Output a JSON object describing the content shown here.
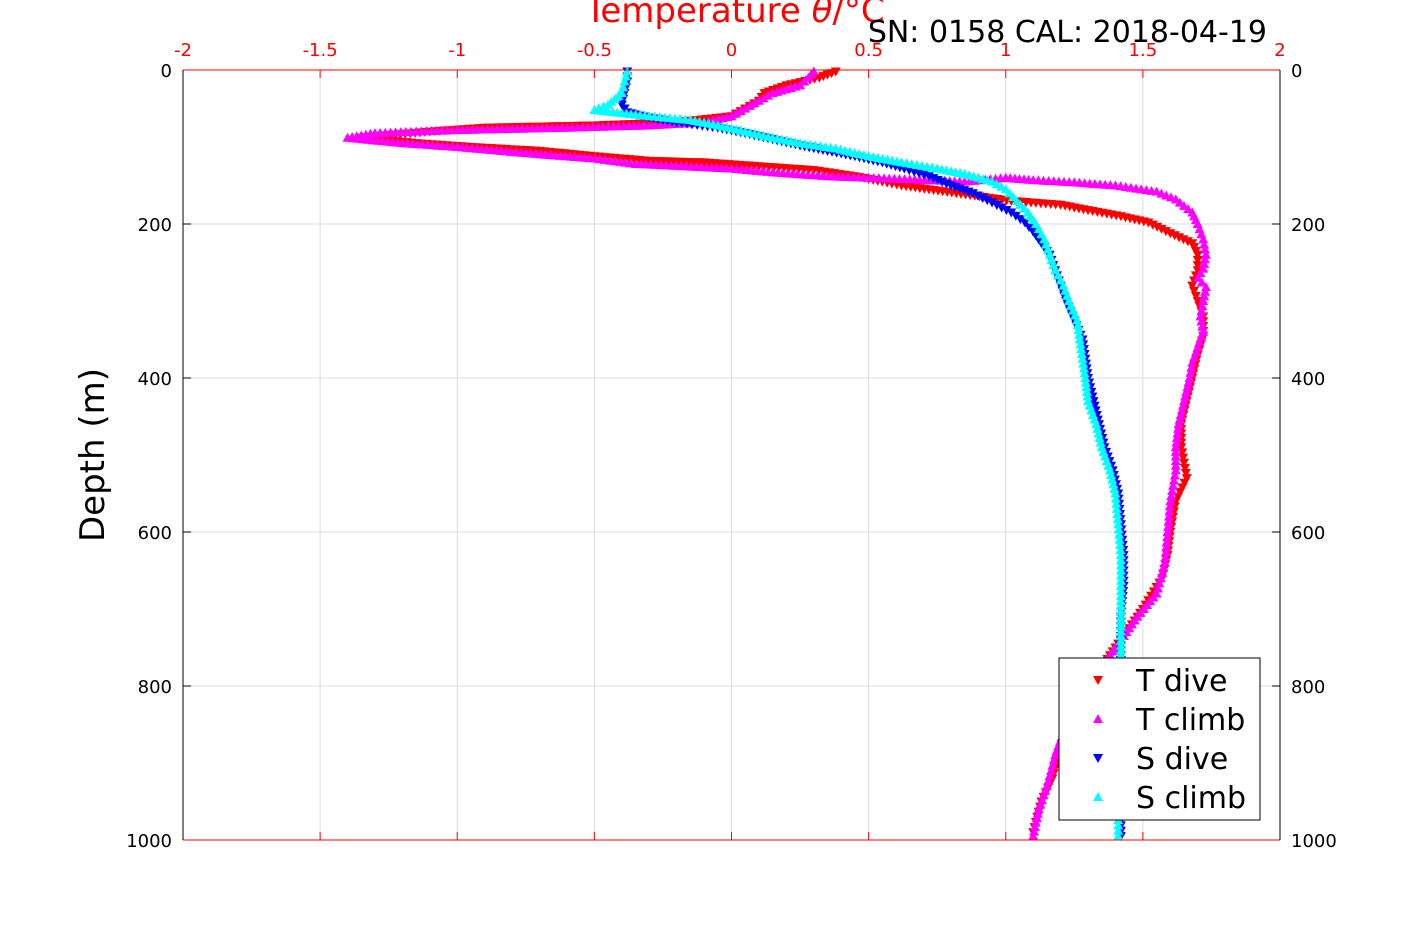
{
  "header": {
    "xtitle_prefix": "Temperature ",
    "xtitle_var": "θ",
    "xtitle_suffix": "/°C",
    "serial_cal": "SN: 0158  CAL: 2018-04-19"
  },
  "chart_data": {
    "type": "scatter",
    "title": "",
    "xlabel": "Temperature θ/°C",
    "ylabel": "Depth (m)",
    "xlim": [
      -2,
      2
    ],
    "ylim": [
      1000,
      0
    ],
    "y_reversed": true,
    "grid": true,
    "legend_position": "bottom-right",
    "x_ticks": [
      "-2",
      "-1.5",
      "-1",
      "-0.5",
      "0",
      "0.5",
      "1",
      "1.5",
      "2"
    ],
    "y_ticks": [
      "0",
      "200",
      "400",
      "600",
      "800",
      "1000"
    ],
    "colors": {
      "axis_top": "#ff0000",
      "t_dive": "#ff0000",
      "t_climb": "#ff00ff",
      "s_dive": "#0000ff",
      "s_climb": "#00ffff"
    },
    "series": [
      {
        "name": "T dive",
        "marker": "triangle-down",
        "color": "#ff0000",
        "points": [
          [
            0.38,
            2
          ],
          [
            0.32,
            10
          ],
          [
            0.2,
            20
          ],
          [
            0.12,
            30
          ],
          [
            0.1,
            40
          ],
          [
            0.05,
            50
          ],
          [
            0.0,
            60
          ],
          [
            -0.2,
            68
          ],
          [
            -0.5,
            72
          ],
          [
            -0.9,
            75
          ],
          [
            -1.1,
            80
          ],
          [
            -1.35,
            88
          ],
          [
            -1.15,
            95
          ],
          [
            -0.95,
            100
          ],
          [
            -0.7,
            105
          ],
          [
            -0.5,
            112
          ],
          [
            -0.3,
            118
          ],
          [
            -0.1,
            120
          ],
          [
            0.1,
            125
          ],
          [
            0.3,
            130
          ],
          [
            0.45,
            138
          ],
          [
            0.55,
            145
          ],
          [
            0.62,
            150
          ],
          [
            0.72,
            155
          ],
          [
            0.82,
            160
          ],
          [
            0.92,
            165
          ],
          [
            1.02,
            170
          ],
          [
            1.2,
            175
          ],
          [
            1.3,
            182
          ],
          [
            1.42,
            190
          ],
          [
            1.52,
            198
          ],
          [
            1.6,
            212
          ],
          [
            1.68,
            225
          ],
          [
            1.7,
            240
          ],
          [
            1.7,
            260
          ],
          [
            1.68,
            280
          ],
          [
            1.7,
            300
          ],
          [
            1.72,
            320
          ],
          [
            1.72,
            345
          ],
          [
            1.7,
            370
          ],
          [
            1.68,
            400
          ],
          [
            1.66,
            430
          ],
          [
            1.64,
            460
          ],
          [
            1.64,
            490
          ],
          [
            1.66,
            530
          ],
          [
            1.62,
            560
          ],
          [
            1.6,
            600
          ],
          [
            1.59,
            630
          ],
          [
            1.57,
            660
          ],
          [
            1.5,
            700
          ],
          [
            1.44,
            730
          ],
          [
            1.38,
            760
          ],
          [
            1.3,
            800
          ],
          [
            1.24,
            840
          ],
          [
            1.2,
            880
          ],
          [
            1.17,
            920
          ],
          [
            1.13,
            950
          ],
          [
            1.1,
            990
          ]
        ]
      },
      {
        "name": "T climb",
        "marker": "triangle-up",
        "color": "#ff00ff",
        "points": [
          [
            0.3,
            2
          ],
          [
            0.28,
            10
          ],
          [
            0.25,
            20
          ],
          [
            0.15,
            30
          ],
          [
            0.1,
            40
          ],
          [
            0.05,
            50
          ],
          [
            0.0,
            60
          ],
          [
            -0.1,
            68
          ],
          [
            -0.3,
            72
          ],
          [
            -0.6,
            75
          ],
          [
            -1.0,
            78
          ],
          [
            -1.3,
            82
          ],
          [
            -1.4,
            88
          ],
          [
            -1.2,
            95
          ],
          [
            -1.0,
            100
          ],
          [
            -0.75,
            108
          ],
          [
            -0.5,
            115
          ],
          [
            -0.35,
            122
          ],
          [
            0.0,
            128
          ],
          [
            0.15,
            133
          ],
          [
            0.35,
            138
          ],
          [
            0.65,
            142
          ],
          [
            0.85,
            145
          ],
          [
            1.0,
            140
          ],
          [
            1.1,
            143
          ],
          [
            1.25,
            146
          ],
          [
            1.4,
            150
          ],
          [
            1.55,
            158
          ],
          [
            1.62,
            168
          ],
          [
            1.68,
            185
          ],
          [
            1.7,
            200
          ],
          [
            1.72,
            220
          ],
          [
            1.73,
            240
          ],
          [
            1.72,
            258
          ],
          [
            1.7,
            270
          ],
          [
            1.73,
            282
          ],
          [
            1.72,
            300
          ],
          [
            1.71,
            320
          ],
          [
            1.72,
            340
          ],
          [
            1.7,
            360
          ],
          [
            1.68,
            380
          ],
          [
            1.67,
            400
          ],
          [
            1.65,
            430
          ],
          [
            1.63,
            460
          ],
          [
            1.62,
            490
          ],
          [
            1.62,
            520
          ],
          [
            1.6,
            560
          ],
          [
            1.59,
            600
          ],
          [
            1.58,
            640
          ],
          [
            1.55,
            680
          ],
          [
            1.48,
            710
          ],
          [
            1.42,
            740
          ],
          [
            1.36,
            770
          ],
          [
            1.28,
            810
          ],
          [
            1.22,
            850
          ],
          [
            1.18,
            890
          ],
          [
            1.15,
            930
          ],
          [
            1.12,
            960
          ],
          [
            1.1,
            995
          ]
        ]
      },
      {
        "name": "S dive",
        "marker": "triangle-down",
        "color": "#0000ff",
        "points": [
          [
            -0.38,
            2
          ],
          [
            -0.38,
            15
          ],
          [
            -0.39,
            30
          ],
          [
            -0.4,
            45
          ],
          [
            -0.38,
            55
          ],
          [
            -0.3,
            62
          ],
          [
            -0.2,
            68
          ],
          [
            -0.05,
            75
          ],
          [
            0.05,
            82
          ],
          [
            0.15,
            90
          ],
          [
            0.25,
            98
          ],
          [
            0.35,
            105
          ],
          [
            0.45,
            112
          ],
          [
            0.55,
            120
          ],
          [
            0.63,
            128
          ],
          [
            0.72,
            138
          ],
          [
            0.8,
            150
          ],
          [
            0.88,
            160
          ],
          [
            0.95,
            172
          ],
          [
            1.02,
            185
          ],
          [
            1.07,
            198
          ],
          [
            1.1,
            210
          ],
          [
            1.13,
            225
          ],
          [
            1.16,
            240
          ],
          [
            1.18,
            260
          ],
          [
            1.2,
            280
          ],
          [
            1.22,
            300
          ],
          [
            1.25,
            325
          ],
          [
            1.28,
            350
          ],
          [
            1.29,
            375
          ],
          [
            1.3,
            400
          ],
          [
            1.32,
            430
          ],
          [
            1.34,
            460
          ],
          [
            1.36,
            490
          ],
          [
            1.39,
            520
          ],
          [
            1.41,
            550
          ],
          [
            1.42,
            590
          ],
          [
            1.43,
            630
          ],
          [
            1.43,
            670
          ],
          [
            1.42,
            710
          ],
          [
            1.42,
            760
          ],
          [
            1.42,
            810
          ],
          [
            1.42,
            860
          ],
          [
            1.42,
            910
          ],
          [
            1.42,
            960
          ],
          [
            1.42,
            995
          ]
        ]
      },
      {
        "name": "S climb",
        "marker": "triangle-up",
        "color": "#00ffff",
        "points": [
          [
            -0.38,
            2
          ],
          [
            -0.39,
            15
          ],
          [
            -0.4,
            30
          ],
          [
            -0.45,
            45
          ],
          [
            -0.5,
            52
          ],
          [
            -0.4,
            56
          ],
          [
            -0.3,
            60
          ],
          [
            -0.15,
            65
          ],
          [
            -0.05,
            72
          ],
          [
            0.05,
            80
          ],
          [
            0.15,
            88
          ],
          [
            0.25,
            95
          ],
          [
            0.38,
            102
          ],
          [
            0.5,
            112
          ],
          [
            0.62,
            120
          ],
          [
            0.75,
            128
          ],
          [
            0.85,
            135
          ],
          [
            0.95,
            145
          ],
          [
            1.0,
            155
          ],
          [
            1.04,
            170
          ],
          [
            1.08,
            185
          ],
          [
            1.11,
            200
          ],
          [
            1.14,
            220
          ],
          [
            1.16,
            240
          ],
          [
            1.18,
            260
          ],
          [
            1.21,
            280
          ],
          [
            1.23,
            300
          ],
          [
            1.26,
            325
          ],
          [
            1.27,
            350
          ],
          [
            1.28,
            375
          ],
          [
            1.29,
            400
          ],
          [
            1.3,
            430
          ],
          [
            1.33,
            460
          ],
          [
            1.35,
            490
          ],
          [
            1.38,
            520
          ],
          [
            1.4,
            550
          ],
          [
            1.41,
            590
          ],
          [
            1.42,
            630
          ],
          [
            1.42,
            670
          ],
          [
            1.42,
            710
          ],
          [
            1.42,
            760
          ],
          [
            1.42,
            810
          ],
          [
            1.42,
            860
          ],
          [
            1.42,
            910
          ],
          [
            1.41,
            960
          ],
          [
            1.41,
            995
          ]
        ]
      }
    ]
  }
}
